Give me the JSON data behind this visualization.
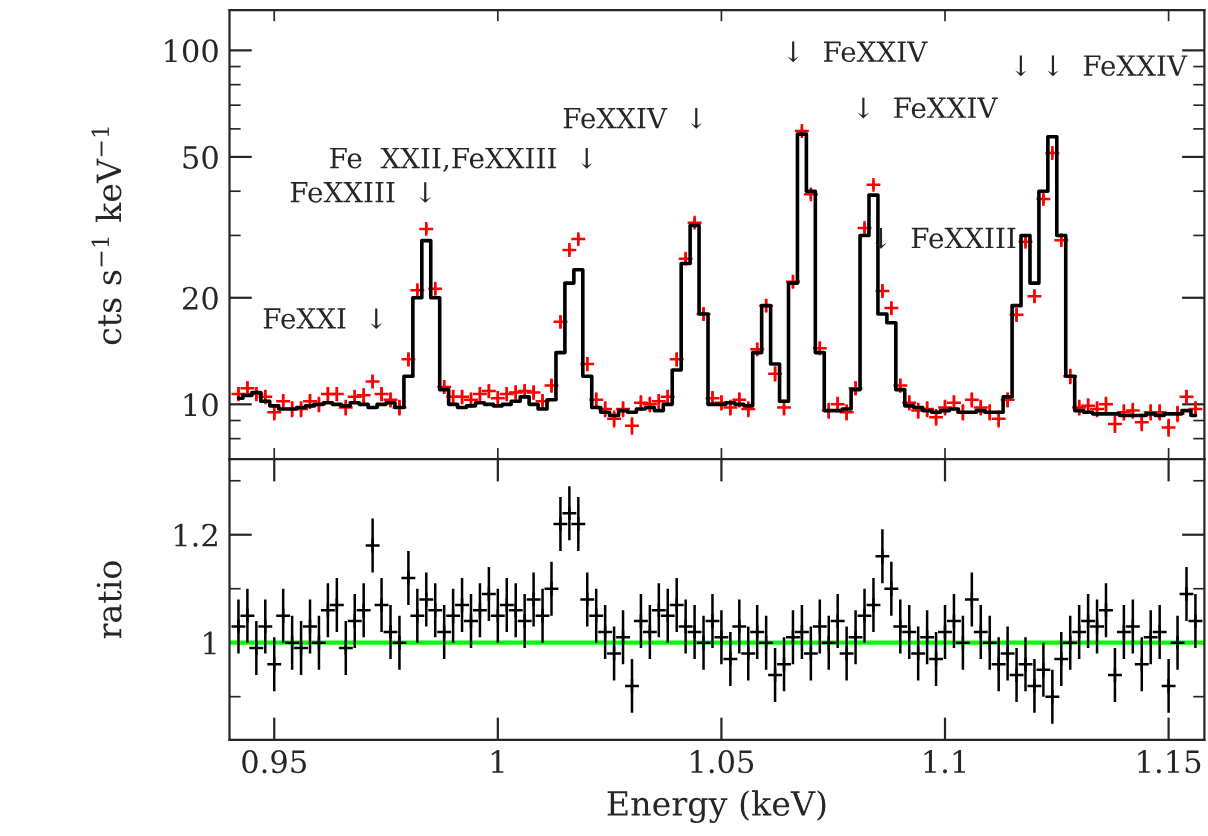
{
  "chart_data": [
    {
      "type": "scatter",
      "ylabel": "cts s$^{−1}$ keV$^{−1}$",
      "log": true,
      "tick_labels": "y",
      "xlim": [
        0.94,
        1.158
      ],
      "ylim": [
        7,
        130
      ],
      "xticks": [
        {
          "value": 0.95,
          "label": null
        },
        {
          "value": 1,
          "label": null
        },
        {
          "value": 1.05,
          "label": null
        },
        {
          "value": 1.1,
          "label": null
        },
        {
          "value": 1.15,
          "label": null
        }
      ],
      "yticks": [
        10,
        20,
        50,
        100,
        {
          "value": 8,
          "label": null
        },
        {
          "value": 9,
          "label": null
        },
        {
          "value": 30,
          "label": null
        },
        {
          "value": 40,
          "label": null
        },
        {
          "value": 60,
          "label": null
        },
        {
          "value": 70,
          "label": null
        },
        {
          "value": 80,
          "label": null
        },
        {
          "value": 90,
          "label": null
        }
      ],
      "x": [
        0.942,
        0.944,
        0.946,
        0.948,
        0.95,
        0.952,
        0.954,
        0.956,
        0.958,
        0.96,
        0.962,
        0.964,
        0.966,
        0.968,
        0.97,
        0.972,
        0.974,
        0.976,
        0.978,
        0.98,
        0.982,
        0.984,
        0.986,
        0.988,
        0.99,
        0.992,
        0.994,
        0.996,
        0.998,
        1.0,
        1.002,
        1.004,
        1.006,
        1.008,
        1.01,
        1.012,
        1.014,
        1.016,
        1.018,
        1.02,
        1.022,
        1.024,
        1.026,
        1.028,
        1.03,
        1.032,
        1.034,
        1.036,
        1.038,
        1.04,
        1.042,
        1.044,
        1.046,
        1.048,
        1.05,
        1.052,
        1.054,
        1.056,
        1.058,
        1.06,
        1.062,
        1.064,
        1.066,
        1.068,
        1.07,
        1.072,
        1.074,
        1.076,
        1.078,
        1.08,
        1.082,
        1.084,
        1.086,
        1.088,
        1.09,
        1.092,
        1.094,
        1.096,
        1.098,
        1.1,
        1.102,
        1.104,
        1.106,
        1.108,
        1.11,
        1.112,
        1.114,
        1.116,
        1.118,
        1.12,
        1.122,
        1.124,
        1.126,
        1.128,
        1.13,
        1.132,
        1.134,
        1.136,
        1.138,
        1.14,
        1.142,
        1.144,
        1.146,
        1.148,
        1.15,
        1.152,
        1.154,
        1.156
      ],
      "series": [
        {
          "marker": "cross",
          "color": "#ff0000",
          "values": [
            10.7,
            11.1,
            10.7,
            10.5,
            9.5,
            10.2,
            9.7,
            9.7,
            10.2,
            10.0,
            10.7,
            10.7,
            9.8,
            10.5,
            10.6,
            11.6,
            10.7,
            10.3,
            9.8,
            13.4,
            21.0,
            31.3,
            21.2,
            11.2,
            10.5,
            10.5,
            10.3,
            10.7,
            10.9,
            10.4,
            10.7,
            10.8,
            10.9,
            10.8,
            10.2,
            11.3,
            17.1,
            27.3,
            29.3,
            13.0,
            10.3,
            9.7,
            9.1,
            9.7,
            8.7,
            10.1,
            10.0,
            10.2,
            10.5,
            13.4,
            25.8,
            32.6,
            18.0,
            10.4,
            10.1,
            9.8,
            10.3,
            9.7,
            14.3,
            19.0,
            12.2,
            9.8,
            22.2,
            59.2,
            39.2,
            14.4,
            9.6,
            10.0,
            9.5,
            11.1,
            31.5,
            41.7,
            20.9,
            18.7,
            11.3,
            10.1,
            9.6,
            9.7,
            9.2,
            9.8,
            10.1,
            9.5,
            10.3,
            9.8,
            9.5,
            9.1,
            10.3,
            17.9,
            28.8,
            20.2,
            38.0,
            51.3,
            29.1,
            12.0,
            9.8,
            9.9,
            9.7,
            10.0,
            8.8,
            9.5,
            9.6,
            8.9,
            9.5,
            9.5,
            8.6,
            9.4,
            10.5,
            9.7
          ],
          "errors": [
            0.5,
            0.5,
            0.5,
            0.5,
            0.5,
            0.5,
            0.5,
            0.5,
            0.5,
            0.5,
            0.5,
            0.5,
            0.5,
            0.5,
            0.5,
            0.5,
            0.5,
            0.5,
            0.5,
            0.6,
            0.8,
            1,
            0.8,
            0.5,
            0.5,
            0.5,
            0.5,
            0.5,
            0.5,
            0.5,
            0.5,
            0.5,
            0.5,
            0.5,
            0.5,
            0.5,
            0.7,
            0.9,
            1,
            0.6,
            0.5,
            0.5,
            0.5,
            0.5,
            0.5,
            0.5,
            0.5,
            0.5,
            0.5,
            0.6,
            0.9,
            1,
            0.8,
            0.5,
            0.5,
            0.5,
            0.5,
            0.5,
            0.6,
            0.8,
            0.6,
            0.5,
            0.9,
            1.5,
            1.2,
            0.6,
            0.5,
            0.5,
            0.5,
            0.5,
            1,
            1.2,
            0.8,
            0.8,
            0.5,
            0.5,
            0.5,
            0.5,
            0.5,
            0.5,
            0.5,
            0.5,
            0.5,
            0.5,
            0.5,
            0.5,
            0.5,
            0.8,
            1,
            0.8,
            1.2,
            1.4,
            1,
            0.6,
            0.5,
            0.5,
            0.5,
            0.5,
            0.5,
            0.5,
            0.5,
            0.5,
            0.5,
            0.5,
            0.5,
            0.5,
            0.5,
            0.5
          ]
        },
        {
          "type": "step",
          "color": "#000000",
          "values": [
            10.4,
            10.6,
            10.8,
            10.2,
            9.9,
            9.7,
            9.7,
            9.8,
            9.9,
            10.0,
            10.1,
            10.0,
            9.9,
            10.1,
            10.0,
            9.8,
            10.0,
            10.1,
            9.8,
            12,
            20,
            29,
            20,
            11,
            10.0,
            9.8,
            9.9,
            10.1,
            10.0,
            9.9,
            10.0,
            10.2,
            10.5,
            10.0,
            9.7,
            10.3,
            14,
            22,
            24,
            12,
            9.8,
            9.5,
            9.3,
            9.6,
            9.5,
            9.7,
            9.8,
            9.6,
            10.0,
            12.5,
            25,
            32,
            18,
            10.0,
            10.0,
            10.1,
            10.0,
            9.9,
            14,
            19,
            13,
            10.2,
            22,
            58,
            40,
            14,
            9.6,
            9.6,
            9.7,
            11,
            30,
            39,
            18,
            17,
            11,
            9.9,
            9.8,
            9.6,
            9.5,
            9.6,
            9.7,
            9.5,
            9.5,
            9.6,
            9.5,
            9.5,
            10.5,
            19,
            30,
            22,
            40,
            57,
            30,
            12,
            9.6,
            9.5,
            9.4,
            9.4,
            9.4,
            9.3,
            9.3,
            9.3,
            9.4,
            9.3,
            9.4,
            9.4,
            9.6,
            9.3
          ]
        }
      ],
      "annotations": [
        "FeXXI  ↓",
        "FeXXIII  ↓",
        "Fe  XXII,FeXXIII  ↓",
        "FeXXIV  ↓",
        "↓  FeXXIV",
        "↓  FeXXIV",
        "↓  FeXXIII",
        "↓ ↓  FeXXIV"
      ]
    },
    {
      "type": "scatter",
      "xlabel": "Energy (keV)",
      "ylabel": "ratio",
      "xlim": [
        0.94,
        1.158
      ],
      "ylim": [
        0.82,
        1.34
      ],
      "xticks": [
        0.95,
        1,
        1.05,
        1.1,
        1.15
      ],
      "yticks": [
        1,
        1.2,
        {
          "value": 0.9,
          "label": null
        },
        {
          "value": 1.1,
          "label": null
        },
        {
          "value": 1.3,
          "label": null
        }
      ],
      "ref_lines": [
        {
          "axis": "y",
          "value": 1,
          "color": "#00ff00"
        }
      ],
      "x": [
        0.942,
        0.944,
        0.946,
        0.948,
        0.95,
        0.952,
        0.954,
        0.956,
        0.958,
        0.96,
        0.962,
        0.964,
        0.966,
        0.968,
        0.97,
        0.972,
        0.974,
        0.976,
        0.978,
        0.98,
        0.982,
        0.984,
        0.986,
        0.988,
        0.99,
        0.992,
        0.994,
        0.996,
        0.998,
        1.0,
        1.002,
        1.004,
        1.006,
        1.008,
        1.01,
        1.012,
        1.014,
        1.016,
        1.018,
        1.02,
        1.022,
        1.024,
        1.026,
        1.028,
        1.03,
        1.032,
        1.034,
        1.036,
        1.038,
        1.04,
        1.042,
        1.044,
        1.046,
        1.048,
        1.05,
        1.052,
        1.054,
        1.056,
        1.058,
        1.06,
        1.062,
        1.064,
        1.066,
        1.068,
        1.07,
        1.072,
        1.074,
        1.076,
        1.078,
        1.08,
        1.082,
        1.084,
        1.086,
        1.088,
        1.09,
        1.092,
        1.094,
        1.096,
        1.098,
        1.1,
        1.102,
        1.104,
        1.106,
        1.108,
        1.11,
        1.112,
        1.114,
        1.116,
        1.118,
        1.12,
        1.122,
        1.124,
        1.126,
        1.128,
        1.13,
        1.132,
        1.134,
        1.136,
        1.138,
        1.14,
        1.142,
        1.144,
        1.146,
        1.148,
        1.15,
        1.152,
        1.154,
        1.156
      ],
      "series": [
        {
          "marker": "cross",
          "color": "#000000",
          "values": [
            1.03,
            1.05,
            0.99,
            1.03,
            0.96,
            1.05,
            1.0,
            0.99,
            1.03,
            1.0,
            1.06,
            1.07,
            0.99,
            1.04,
            1.06,
            1.18,
            1.07,
            1.02,
            1.0,
            1.12,
            1.05,
            1.08,
            1.06,
            1.02,
            1.05,
            1.07,
            1.04,
            1.06,
            1.09,
            1.05,
            1.07,
            1.06,
            1.04,
            1.08,
            1.05,
            1.1,
            1.22,
            1.24,
            1.22,
            1.08,
            1.05,
            1.02,
            0.98,
            1.01,
            0.92,
            1.04,
            1.02,
            1.06,
            1.05,
            1.07,
            1.03,
            1.02,
            1.0,
            1.04,
            1.01,
            0.97,
            1.03,
            0.98,
            1.02,
            1.0,
            0.94,
            0.96,
            1.01,
            1.02,
            0.98,
            1.03,
            1.0,
            1.04,
            0.98,
            1.01,
            1.05,
            1.07,
            1.16,
            1.1,
            1.03,
            1.02,
            0.98,
            1.01,
            0.97,
            1.02,
            1.04,
            1.0,
            1.08,
            1.02,
            1.0,
            0.96,
            0.98,
            0.94,
            0.96,
            0.92,
            0.95,
            0.9,
            0.97,
            1.0,
            1.02,
            1.04,
            1.03,
            1.06,
            0.94,
            1.02,
            1.03,
            0.96,
            1.01,
            1.02,
            0.92,
            1.0,
            1.09,
            1.04
          ],
          "errors": [
            0.05,
            0.05,
            0.05,
            0.05,
            0.05,
            0.05,
            0.05,
            0.05,
            0.05,
            0.05,
            0.05,
            0.05,
            0.05,
            0.05,
            0.05,
            0.05,
            0.05,
            0.05,
            0.05,
            0.05,
            0.05,
            0.05,
            0.05,
            0.05,
            0.05,
            0.05,
            0.05,
            0.05,
            0.05,
            0.05,
            0.05,
            0.05,
            0.05,
            0.05,
            0.05,
            0.05,
            0.05,
            0.05,
            0.05,
            0.05,
            0.05,
            0.05,
            0.05,
            0.05,
            0.05,
            0.05,
            0.05,
            0.05,
            0.05,
            0.05,
            0.05,
            0.05,
            0.05,
            0.05,
            0.05,
            0.05,
            0.05,
            0.05,
            0.05,
            0.05,
            0.05,
            0.05,
            0.05,
            0.05,
            0.05,
            0.05,
            0.05,
            0.05,
            0.05,
            0.05,
            0.05,
            0.05,
            0.05,
            0.05,
            0.05,
            0.05,
            0.05,
            0.05,
            0.05,
            0.05,
            0.05,
            0.05,
            0.05,
            0.05,
            0.05,
            0.05,
            0.05,
            0.05,
            0.05,
            0.05,
            0.05,
            0.05,
            0.05,
            0.05,
            0.05,
            0.05,
            0.05,
            0.05,
            0.05,
            0.05,
            0.05,
            0.05,
            0.05,
            0.05,
            0.05,
            0.05,
            0.05,
            0.05
          ]
        }
      ]
    }
  ]
}
